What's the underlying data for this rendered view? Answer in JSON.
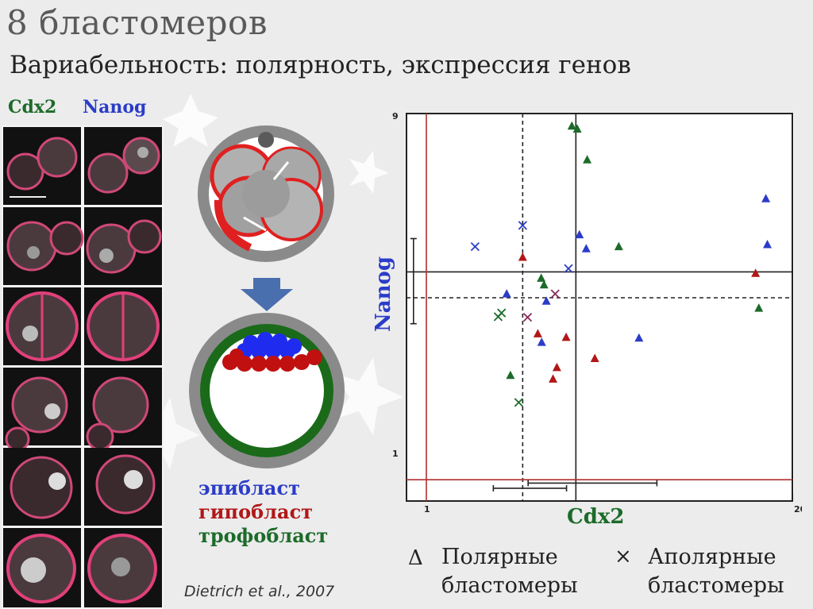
{
  "slide": {
    "title": "8 бластомеров",
    "subtitle": "Вариабельность: полярность, экспрессия генов",
    "stain_labels": {
      "cdx2": "Cdx2",
      "nanog": "Nanog"
    },
    "tissue_legend": [
      {
        "label": "эпибласт",
        "color": "#2b3cc8"
      },
      {
        "label": "гипобласт",
        "color": "#b01818"
      },
      {
        "label": "трофобласт",
        "color": "#1d6b2a"
      }
    ],
    "citation": "Dietrich et al., 2007",
    "point_types": {
      "polar_symbol": "Δ",
      "polar_line1": "Полярные",
      "polar_line2": "бластомеры",
      "apolar_symbol": "×",
      "apolar_line1": "Аполярные",
      "apolar_line2": "бластомеры"
    },
    "colors": {
      "epiblast": "#2b3cc8",
      "hypoblast": "#b01818",
      "trophoblast": "#1d6b2a"
    }
  },
  "chart_data": {
    "type": "scatter",
    "xlabel": "Cdx2",
    "ylabel": "Nanog",
    "x_ticks": [
      "1",
      "20"
    ],
    "y_ticks": [
      "1",
      "9"
    ],
    "xlim": [
      0.85,
      20
    ],
    "ylim": [
      0.88,
      9
    ],
    "scale": "log",
    "series": [
      {
        "marker": "triangle",
        "color": "#2b3cc8",
        "points": [
          [
            1.93,
            3.05
          ],
          [
            2.67,
            2.92
          ],
          [
            2.57,
            2.28
          ],
          [
            3.5,
            4.35
          ],
          [
            3.7,
            4.0
          ],
          [
            5.7,
            2.34
          ],
          [
            16.1,
            5.4
          ],
          [
            16.3,
            4.1
          ]
        ]
      },
      {
        "marker": "triangle",
        "color": "#1d6b2a",
        "points": [
          [
            3.29,
            8.35
          ],
          [
            3.44,
            8.2
          ],
          [
            3.73,
            6.82
          ],
          [
            4.83,
            4.05
          ],
          [
            2.56,
            3.35
          ],
          [
            2.62,
            3.22
          ],
          [
            15.2,
            2.8
          ],
          [
            1.99,
            1.87
          ]
        ]
      },
      {
        "marker": "triangle",
        "color": "#b01818",
        "points": [
          [
            2.2,
            3.8
          ],
          [
            2.49,
            2.4
          ],
          [
            3.14,
            2.35
          ],
          [
            3.97,
            2.07
          ],
          [
            2.91,
            1.96
          ],
          [
            2.82,
            1.83
          ],
          [
            14.8,
            3.45
          ]
        ]
      },
      {
        "marker": "x",
        "color": "#2b3cc8",
        "points": [
          [
            1.49,
            4.05
          ],
          [
            2.2,
            4.6
          ],
          [
            3.2,
            3.55
          ]
        ]
      },
      {
        "marker": "x",
        "color": "#1d6b2a",
        "points": [
          [
            1.8,
            2.66
          ],
          [
            1.85,
            2.72
          ],
          [
            2.13,
            1.59
          ]
        ]
      },
      {
        "marker": "x",
        "color": "#8a2a5a",
        "points": [
          [
            2.29,
            2.65
          ],
          [
            2.87,
            3.05
          ]
        ]
      }
    ],
    "reference_lines": [
      {
        "axis": "x",
        "value": 2.2,
        "style": "dashed",
        "color": "#222"
      },
      {
        "axis": "x",
        "value": 3.4,
        "style": "solid",
        "color": "#222"
      },
      {
        "axis": "y",
        "value": 3.48,
        "style": "solid",
        "color": "#222"
      },
      {
        "axis": "y",
        "value": 2.98,
        "style": "dashed",
        "color": "#222"
      },
      {
        "axis": "x",
        "value": 1.0,
        "style": "solid",
        "color": "#b03030"
      },
      {
        "axis": "y",
        "value": 1.0,
        "style": "solid",
        "color": "#b03030"
      }
    ],
    "range_bars": [
      {
        "axis": "x",
        "from": 1.73,
        "to": 3.15,
        "at_y": 0.95
      },
      {
        "axis": "x",
        "from": 2.3,
        "to": 6.6,
        "at_y": 0.98
      },
      {
        "axis": "y",
        "from": 2.55,
        "to": 4.25,
        "at_x": 0.9
      }
    ]
  }
}
